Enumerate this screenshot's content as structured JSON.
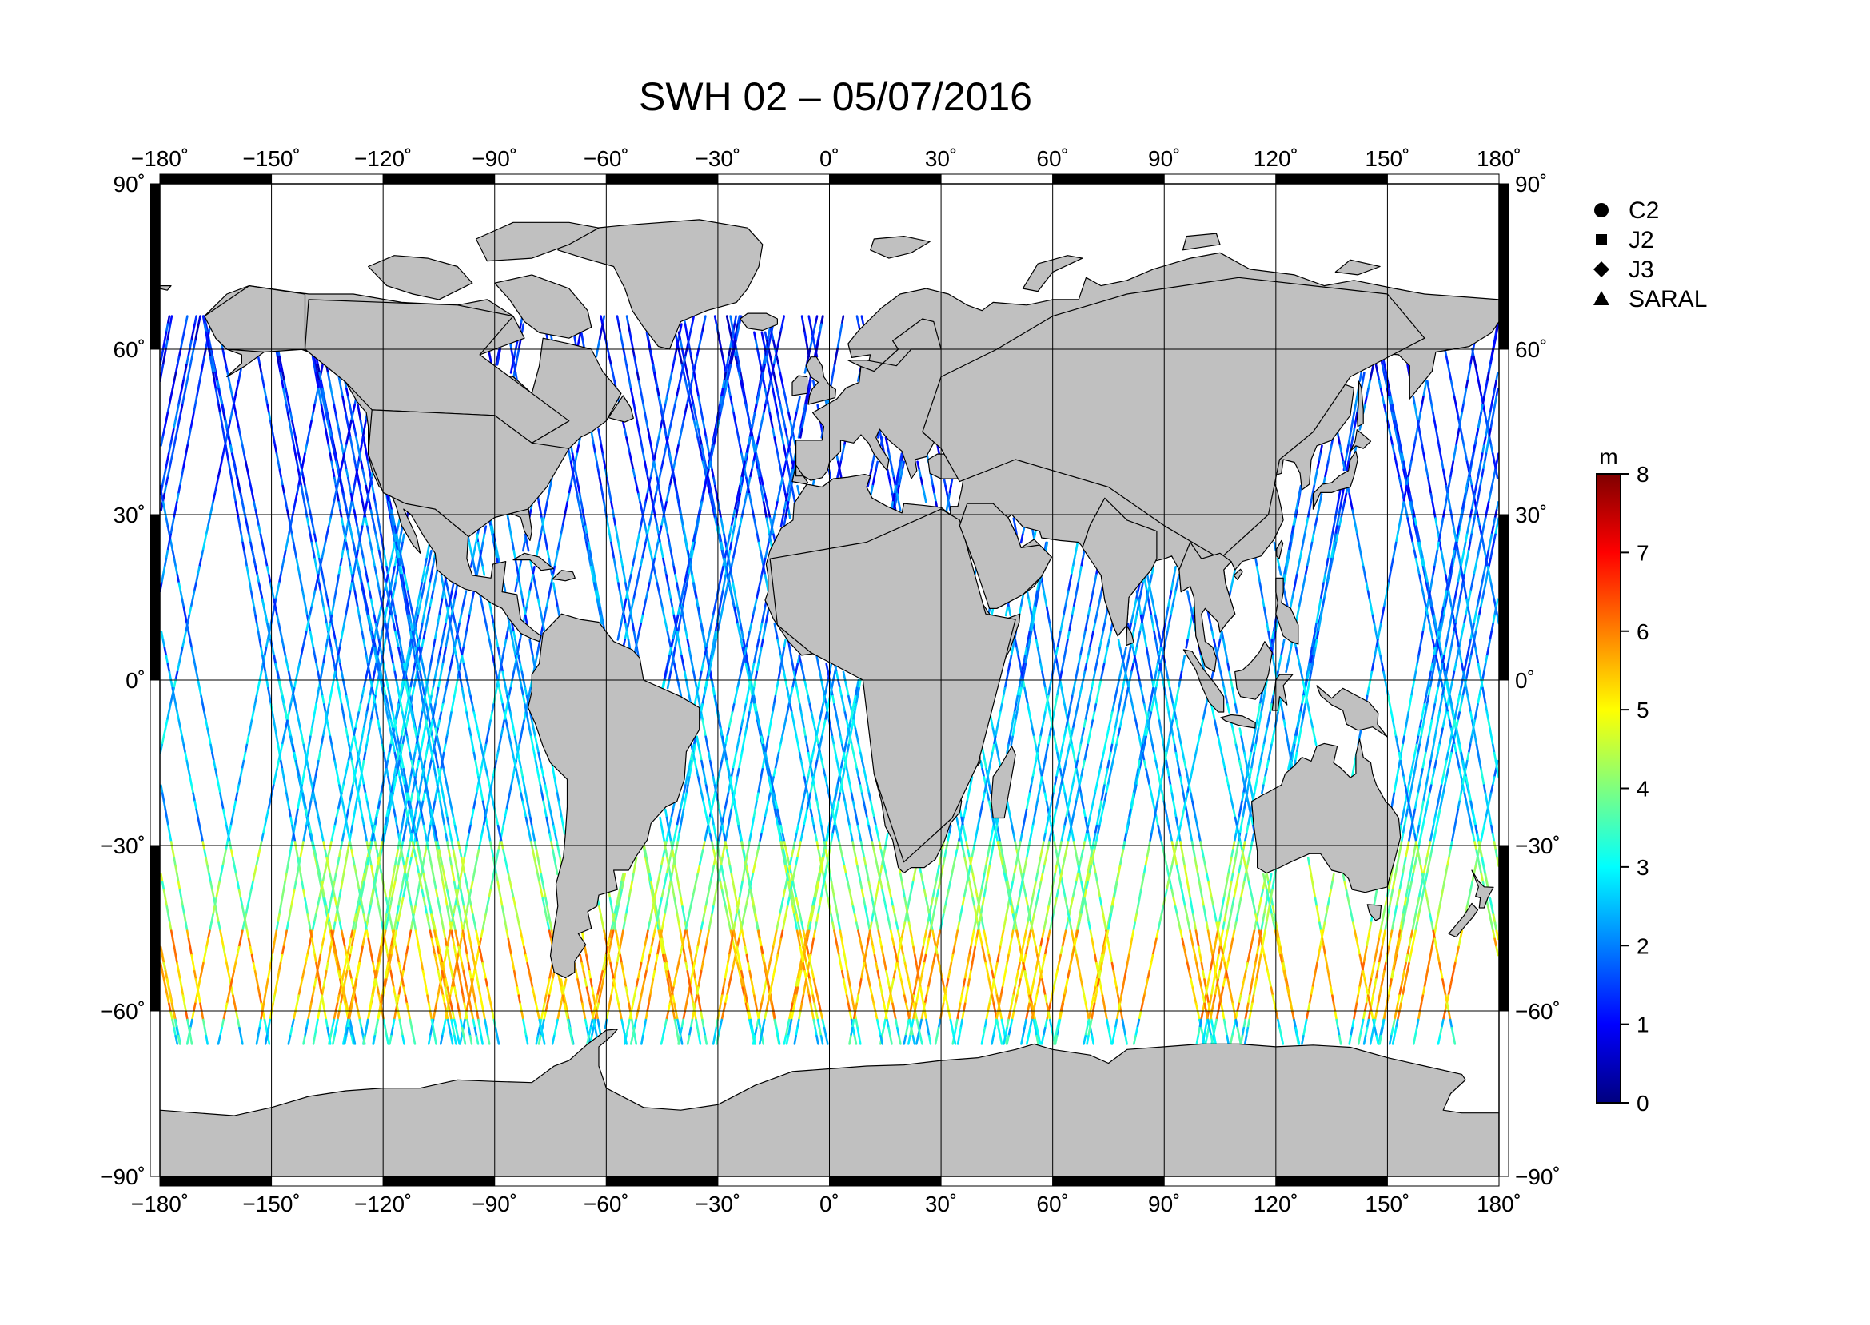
{
  "title": "SWH 02 – 05/07/2016",
  "colors": {
    "land": "#c0c0c0",
    "ocean": "#ffffff",
    "frame_dark": "#000000",
    "frame_light": "#ffffff",
    "grid": "#000000"
  },
  "map": {
    "projection": "equirectangular",
    "lon_range": [
      -180,
      180
    ],
    "lat_range": [
      -90,
      90
    ],
    "lon_ticks": [
      -180,
      -150,
      -120,
      -90,
      -60,
      -30,
      0,
      30,
      60,
      90,
      120,
      150,
      180
    ],
    "lat_ticks": [
      90,
      60,
      30,
      0,
      -30,
      -60,
      -90
    ],
    "lon_tick_labels": [
      "−180˚",
      "−150˚",
      "−120˚",
      "−90˚",
      "−60˚",
      "−30˚",
      "0˚",
      "30˚",
      "60˚",
      "90˚",
      "120˚",
      "150˚",
      "180˚"
    ],
    "lat_tick_labels": [
      "90˚",
      "60˚",
      "30˚",
      "0˚",
      "−30˚",
      "−60˚",
      "−90˚"
    ],
    "grid": true
  },
  "legend": {
    "placement": "right",
    "items": [
      {
        "label": "C2",
        "symbol": "circle"
      },
      {
        "label": "J2",
        "symbol": "square"
      },
      {
        "label": "J3",
        "symbol": "diamond"
      },
      {
        "label": "SARAL",
        "symbol": "triangle"
      }
    ]
  },
  "colorbar": {
    "unit": "m",
    "min": 0,
    "max": 8,
    "ticks": [
      "0",
      "1",
      "2",
      "3",
      "4",
      "5",
      "6",
      "7",
      "8"
    ],
    "colormap": "jet"
  },
  "chart_data": {
    "type": "scatter",
    "title": "SWH 02 – 05/07/2016",
    "xlabel": "",
    "ylabel": "",
    "xlim": [
      -180,
      180
    ],
    "ylim": [
      -90,
      90
    ],
    "value_unit": "m",
    "value_range": [
      0,
      8
    ],
    "swh_by_latitude_band": [
      {
        "lat_band": [
          55,
          80
        ],
        "typical_swh_m": 1.2
      },
      {
        "lat_band": [
          30,
          55
        ],
        "typical_swh_m": 1.5
      },
      {
        "lat_band": [
          0,
          30
        ],
        "typical_swh_m": 2.0
      },
      {
        "lat_band": [
          -30,
          0
        ],
        "typical_swh_m": 2.5
      },
      {
        "lat_band": [
          -45,
          -30
        ],
        "typical_swh_m": 4.0
      },
      {
        "lat_band": [
          -62,
          -45
        ],
        "typical_swh_m": 5.5
      },
      {
        "lat_band": [
          -66,
          -62
        ],
        "typical_swh_m": 3.0
      }
    ]
  }
}
